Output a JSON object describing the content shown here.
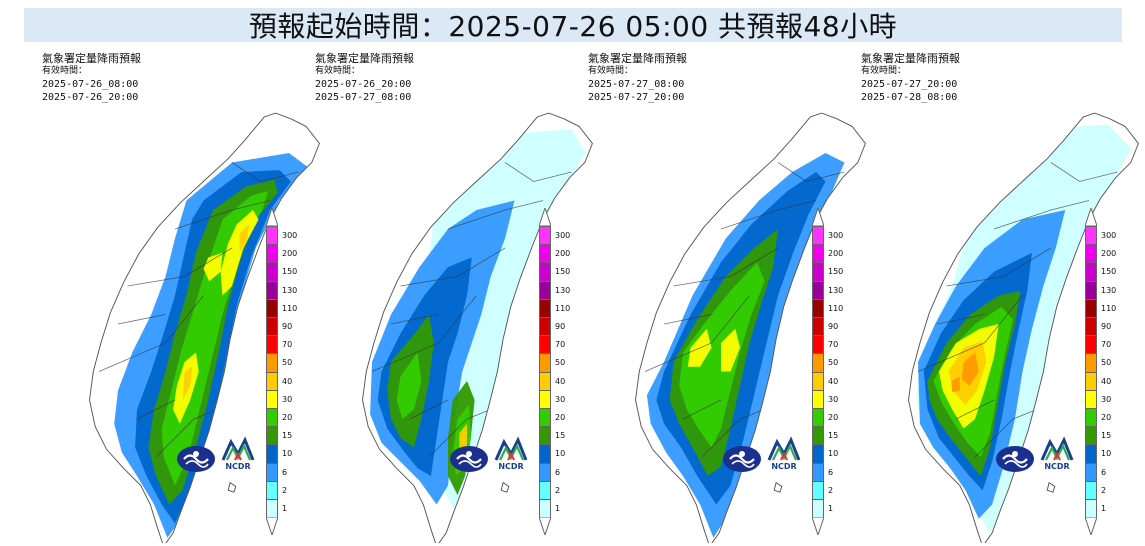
{
  "title": "預報起始時間：2025-07-26 05:00  共預報48小時",
  "panels": [
    {
      "name": "氣象署定量降雨預報",
      "valid_label": "有效時間：",
      "start": "2025-07-26_08:00",
      "end": "2025-07-26_20:00",
      "pattern": "p1"
    },
    {
      "name": "氣象署定量降雨預報",
      "valid_label": "有效時間：",
      "start": "2025-07-26_20:00",
      "end": "2025-07-27_08:00",
      "pattern": "p2"
    },
    {
      "name": "氣象署定量降雨預報",
      "valid_label": "有效時間：",
      "start": "2025-07-27_08:00",
      "end": "2025-07-27_20:00",
      "pattern": "p3"
    },
    {
      "name": "氣象署定量降雨預報",
      "valid_label": "有效時間：",
      "start": "2025-07-27_20:00",
      "end": "2025-07-28_08:00",
      "pattern": "p4"
    }
  ],
  "legend": {
    "levels": [
      "300",
      "200",
      "150",
      "130",
      "110",
      "90",
      "70",
      "50",
      "40",
      "30",
      "20",
      "15",
      "10",
      "6",
      "2",
      "1"
    ],
    "colors": [
      "#ff33ff",
      "#ee00ee",
      "#cc00cc",
      "#990099",
      "#990000",
      "#cc0000",
      "#ff0000",
      "#ff9900",
      "#ffcc00",
      "#ffff00",
      "#33cc00",
      "#339900",
      "#0066cc",
      "#3399ff",
      "#66ffff",
      "#ccffff"
    ]
  },
  "logos": {
    "logo2_text": "NCDR"
  },
  "colors": {
    "white": "#ffffff",
    "very_light": "#ccffff",
    "light_cyan": "#66ffff",
    "light_blue": "#3399ff",
    "blue": "#0066cc",
    "dark_green": "#339900",
    "green": "#33cc00",
    "yellow": "#ffff00",
    "gold": "#ffcc00",
    "orange": "#ff9900"
  }
}
